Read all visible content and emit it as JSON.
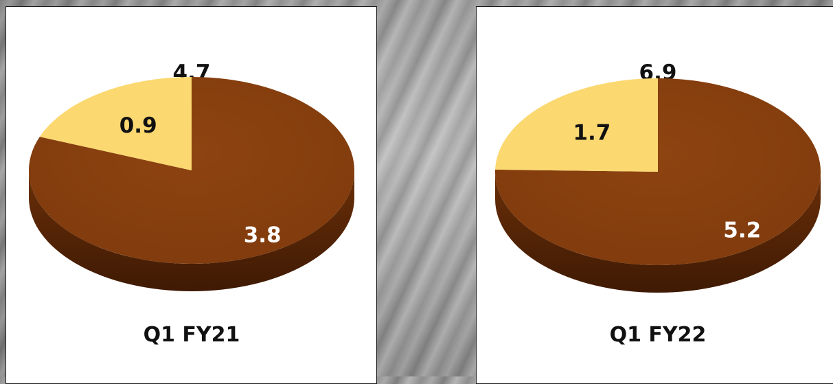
{
  "chart_data": [
    {
      "type": "pie",
      "total_label": "4.7",
      "period_label": "Q1 FY21",
      "slices": [
        {
          "label": "3.8",
          "value": 3.8,
          "color": "#7f3a0c"
        },
        {
          "label": "0.9",
          "value": 0.9,
          "color": "#fbd870"
        }
      ]
    },
    {
      "type": "pie",
      "total_label": "6.9",
      "period_label": "Q1 FY22",
      "slices": [
        {
          "label": "5.2",
          "value": 5.2,
          "color": "#7f3a0c"
        },
        {
          "label": "1.7",
          "value": 1.7,
          "color": "#fbd870"
        }
      ]
    }
  ],
  "colors": {
    "dark_slice_side": "#3f1a04",
    "light_slice_side": "#c9a34a",
    "dark_label_text": "#ffffff",
    "light_label_text": "#111111"
  }
}
